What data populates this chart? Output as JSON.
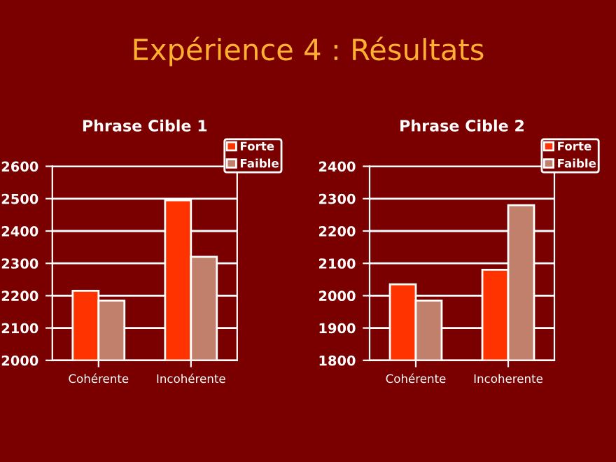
{
  "chart_data": [
    {
      "type": "bar",
      "title": "Phrase Cible 1",
      "annotations": [
        "Expérience 4 : Résultats"
      ],
      "categories": [
        "Cohérente",
        "Incohérente"
      ],
      "series": [
        {
          "name": "Forte",
          "color": "#ff3300",
          "values": [
            2215,
            2495
          ]
        },
        {
          "name": "Faible",
          "color": "#c0806c",
          "values": [
            2185,
            2320
          ]
        }
      ],
      "ylim": [
        2000,
        2600
      ],
      "yticks": [
        2000,
        2100,
        2200,
        2300,
        2400,
        2500,
        2600
      ],
      "grid": "y",
      "legend": "top right"
    },
    {
      "type": "bar",
      "title": "Phrase Cible 2",
      "categories": [
        "Cohérente",
        "Incoherente"
      ],
      "series": [
        {
          "name": "Forte",
          "color": "#ff3300",
          "values": [
            2035,
            2080
          ]
        },
        {
          "name": "Faible",
          "color": "#c0806c",
          "values": [
            1985,
            2280
          ]
        }
      ],
      "ylim": [
        1800,
        2400
      ],
      "yticks": [
        1800,
        1900,
        2000,
        2100,
        2200,
        2300,
        2400
      ],
      "grid": "y",
      "legend": "top right"
    }
  ]
}
